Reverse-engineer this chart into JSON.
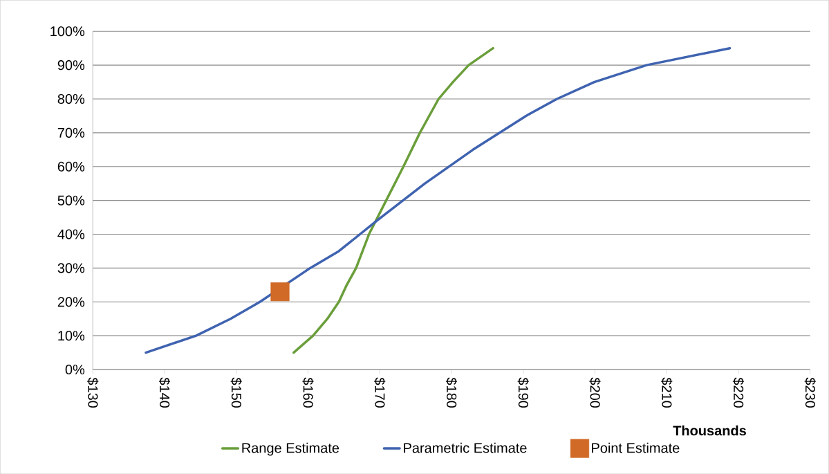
{
  "chart_data": {
    "type": "line",
    "xlabel": "Thousands",
    "xlim": [
      130,
      230
    ],
    "ylim": [
      0,
      100
    ],
    "xticks": [
      {
        "value": 130,
        "label": "$130"
      },
      {
        "value": 140,
        "label": "$140"
      },
      {
        "value": 150,
        "label": "$150"
      },
      {
        "value": 160,
        "label": "$160"
      },
      {
        "value": 170,
        "label": "$170"
      },
      {
        "value": 180,
        "label": "$180"
      },
      {
        "value": 190,
        "label": "$190"
      },
      {
        "value": 200,
        "label": "$200"
      },
      {
        "value": 210,
        "label": "$210"
      },
      {
        "value": 220,
        "label": "$220"
      },
      {
        "value": 230,
        "label": "$230"
      }
    ],
    "yticks": [
      {
        "value": 0,
        "label": "0%"
      },
      {
        "value": 10,
        "label": "10%"
      },
      {
        "value": 20,
        "label": "20%"
      },
      {
        "value": 30,
        "label": "30%"
      },
      {
        "value": 40,
        "label": "40%"
      },
      {
        "value": 50,
        "label": "50%"
      },
      {
        "value": 60,
        "label": "60%"
      },
      {
        "value": 70,
        "label": "70%"
      },
      {
        "value": 80,
        "label": "80%"
      },
      {
        "value": 90,
        "label": "90%"
      },
      {
        "value": 100,
        "label": "100%"
      }
    ],
    "grid": "y",
    "legend": "bottom",
    "series": [
      {
        "name": "Range Estimate",
        "color": "#6a9e3a",
        "marker": "none",
        "x": [
          158.0,
          160.7,
          162.7,
          164.3,
          165.4,
          166.7,
          168.5,
          170.9,
          173.3,
          175.6,
          178.2,
          180.2,
          182.4,
          185.8
        ],
        "values": [
          5,
          10,
          15,
          20,
          25,
          30,
          40,
          50,
          60,
          70,
          80,
          85,
          90,
          95
        ]
      },
      {
        "name": "Parametric Estimate",
        "color": "#3f63b0",
        "marker": "none",
        "x": [
          137.4,
          144.4,
          149.2,
          153.3,
          160.3,
          164.3,
          169.6,
          176.3,
          183.0,
          190.4,
          194.7,
          199.9,
          207.2,
          218.8
        ],
        "values": [
          5,
          10,
          15,
          20,
          30,
          35,
          44,
          55,
          65,
          75,
          80,
          85,
          90,
          95
        ]
      },
      {
        "name": "Point Estimate",
        "type": "scatter",
        "color": "#d06a26",
        "marker": "square",
        "x": [
          156.1
        ],
        "values": [
          23
        ]
      }
    ]
  }
}
